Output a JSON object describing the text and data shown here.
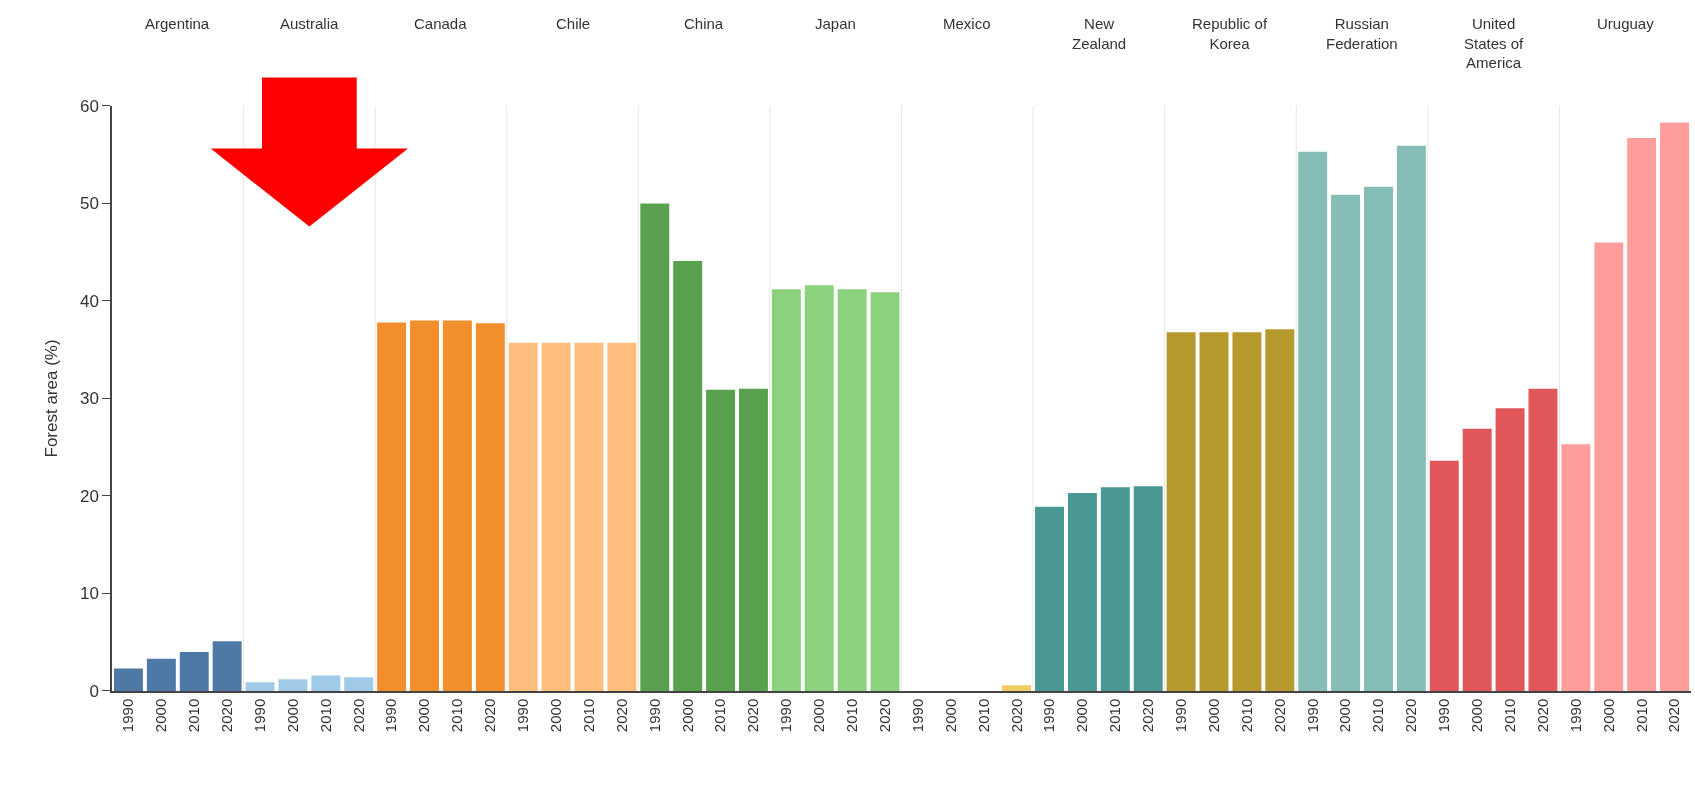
{
  "chart_data": [
    {
      "type": "bar",
      "title": "Argentina",
      "ylabel": "Forest area (%)",
      "categories": [
        "1990",
        "2000",
        "2010",
        "2020"
      ],
      "values": [
        2.3,
        3.3,
        4.0,
        5.1
      ],
      "color": "#4e79a7",
      "ylim": [
        0,
        60
      ],
      "yticks": [
        0,
        10,
        20,
        30,
        40,
        50,
        60
      ]
    },
    {
      "type": "bar",
      "title": "Australia",
      "categories": [
        "1990",
        "2000",
        "2010",
        "2020"
      ],
      "values": [
        0.9,
        1.2,
        1.6,
        1.4
      ],
      "color": "#a0cbe8",
      "ylim": [
        0,
        60
      ],
      "yticks": [
        0,
        10,
        20,
        30,
        40,
        50,
        60
      ],
      "tick_labels": "x"
    },
    {
      "type": "bar",
      "title": "Canada",
      "categories": [
        "1990",
        "2000",
        "2010",
        "2020"
      ],
      "values": [
        37.8,
        38.0,
        38.0,
        37.7
      ],
      "color": "#f28e2b",
      "ylim": [
        0,
        60
      ],
      "yticks": [
        0,
        10,
        20,
        30,
        40,
        50,
        60
      ],
      "tick_labels": "x"
    },
    {
      "type": "bar",
      "title": "Chile",
      "categories": [
        "1990",
        "2000",
        "2010",
        "2020"
      ],
      "values": [
        35.7,
        35.7,
        35.7,
        35.7
      ],
      "color": "#ffbe7d",
      "ylim": [
        0,
        60
      ],
      "yticks": [
        0,
        10,
        20,
        30,
        40,
        50,
        60
      ],
      "tick_labels": "x"
    },
    {
      "type": "bar",
      "title": "China",
      "categories": [
        "1990",
        "2000",
        "2010",
        "2020"
      ],
      "values": [
        50.0,
        44.1,
        30.9,
        31.0
      ],
      "color": "#59a14f",
      "ylim": [
        0,
        60
      ],
      "yticks": [
        0,
        10,
        20,
        30,
        40,
        50,
        60
      ],
      "tick_labels": "x"
    },
    {
      "type": "bar",
      "title": "Japan",
      "categories": [
        "1990",
        "2000",
        "2010",
        "2020"
      ],
      "values": [
        41.2,
        41.6,
        41.2,
        40.9
      ],
      "color": "#8cd17d",
      "ylim": [
        0,
        60
      ],
      "yticks": [
        0,
        10,
        20,
        30,
        40,
        50,
        60
      ],
      "tick_labels": "x"
    },
    {
      "type": "bar",
      "title": "Mexico",
      "categories": [
        "1990",
        "2000",
        "2010",
        "2020"
      ],
      "values": [
        0,
        0,
        0,
        0.6
      ],
      "color": "#f1ce63",
      "ylim": [
        0,
        60
      ],
      "yticks": [
        0,
        10,
        20,
        30,
        40,
        50,
        60
      ],
      "tick_labels": "x"
    },
    {
      "type": "bar",
      "title": "New\nZealand",
      "categories": [
        "1990",
        "2000",
        "2010",
        "2020"
      ],
      "values": [
        18.9,
        20.3,
        20.9,
        21.0
      ],
      "color": "#499894",
      "ylim": [
        0,
        60
      ],
      "yticks": [
        0,
        10,
        20,
        30,
        40,
        50,
        60
      ],
      "tick_labels": "x"
    },
    {
      "type": "bar",
      "title": "Republic of\nKorea",
      "categories": [
        "1990",
        "2000",
        "2010",
        "2020"
      ],
      "values": [
        36.8,
        36.8,
        36.8,
        37.1
      ],
      "color": "#b6992d",
      "ylim": [
        0,
        60
      ],
      "yticks": [
        0,
        10,
        20,
        30,
        40,
        50,
        60
      ],
      "tick_labels": "x"
    },
    {
      "type": "bar",
      "title": "Russian\nFederation",
      "categories": [
        "1990",
        "2000",
        "2010",
        "2020"
      ],
      "values": [
        55.3,
        50.9,
        51.7,
        55.9
      ],
      "color": "#86bcb6",
      "ylim": [
        0,
        60
      ],
      "yticks": [
        0,
        10,
        20,
        30,
        40,
        50,
        60
      ],
      "tick_labels": "x"
    },
    {
      "type": "bar",
      "title": "United\nStates of\nAmerica",
      "categories": [
        "1990",
        "2000",
        "2010",
        "2020"
      ],
      "values": [
        23.6,
        26.9,
        29.0,
        31.0
      ],
      "color": "#e15759",
      "ylim": [
        0,
        60
      ],
      "yticks": [
        0,
        10,
        20,
        30,
        40,
        50,
        60
      ],
      "tick_labels": "x"
    },
    {
      "type": "bar",
      "title": "Uruguay",
      "categories": [
        "1990",
        "2000",
        "2010",
        "2020"
      ],
      "values": [
        25.3,
        46.0,
        56.7,
        58.3
      ],
      "color": "#ff9d9a",
      "ylim": [
        0,
        60
      ],
      "yticks": [
        0,
        10,
        20,
        30,
        40,
        50,
        60
      ],
      "tick_labels": "x"
    }
  ]
}
